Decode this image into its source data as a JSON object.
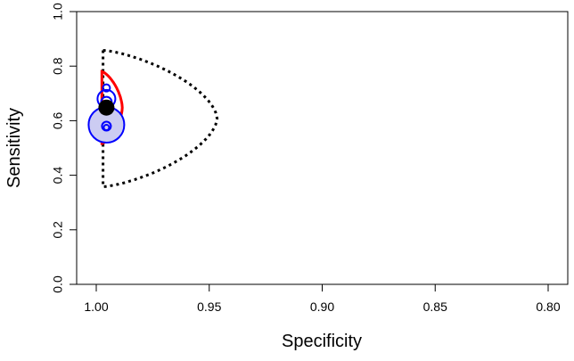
{
  "chart_data": {
    "type": "scatter",
    "xlabel": "Specificity",
    "ylabel": "Sensitivity",
    "x_reversed": true,
    "xlim": [
      1.0,
      0.8
    ],
    "ylim": [
      0.0,
      1.0
    ],
    "xticks": [
      1.0,
      0.95,
      0.9,
      0.85,
      0.8
    ],
    "xtick_labels": [
      "1.00",
      "0.95",
      "0.90",
      "0.85",
      "0.80"
    ],
    "yticks": [
      0.0,
      0.2,
      0.4,
      0.6,
      0.8,
      1.0
    ],
    "ytick_labels": [
      "0.0",
      "0.2",
      "0.4",
      "0.6",
      "0.8",
      "1.0"
    ],
    "grid": false,
    "study_points": [
      {
        "specificity": 0.9955,
        "sensitivity": 0.585,
        "size": 20
      },
      {
        "specificity": 0.9955,
        "sensitivity": 0.68,
        "size": 10
      },
      {
        "specificity": 0.9955,
        "sensitivity": 0.72,
        "size": 4
      },
      {
        "specificity": 0.9955,
        "sensitivity": 0.668,
        "size": 6
      },
      {
        "specificity": 0.9955,
        "sensitivity": 0.58,
        "size": 5
      },
      {
        "specificity": 0.9955,
        "sensitivity": 0.575,
        "size": 3
      }
    ],
    "summary_point": {
      "specificity": 0.9955,
      "sensitivity": 0.648
    },
    "confidence_region": {
      "center": {
        "specificity": 0.9955,
        "sensitivity": 0.648
      },
      "spec_min": 0.9885,
      "spec_max": 0.9975,
      "half_height": 0.132,
      "tip_power": 0.6,
      "shape_power": 1.4
    },
    "prediction_region": {
      "center": {
        "specificity": 0.9955,
        "sensitivity": 0.608
      },
      "spec_min": 0.9465,
      "spec_max": 0.997,
      "half_height": 0.25,
      "tip_power": 0.6,
      "shape_power": 1.4
    },
    "colors": {
      "study_points": "#0000ff",
      "study_fill": "#ccccf2",
      "summary_point": "#000000",
      "confidence_region": "#ff0000",
      "prediction_region": "#000000"
    }
  }
}
